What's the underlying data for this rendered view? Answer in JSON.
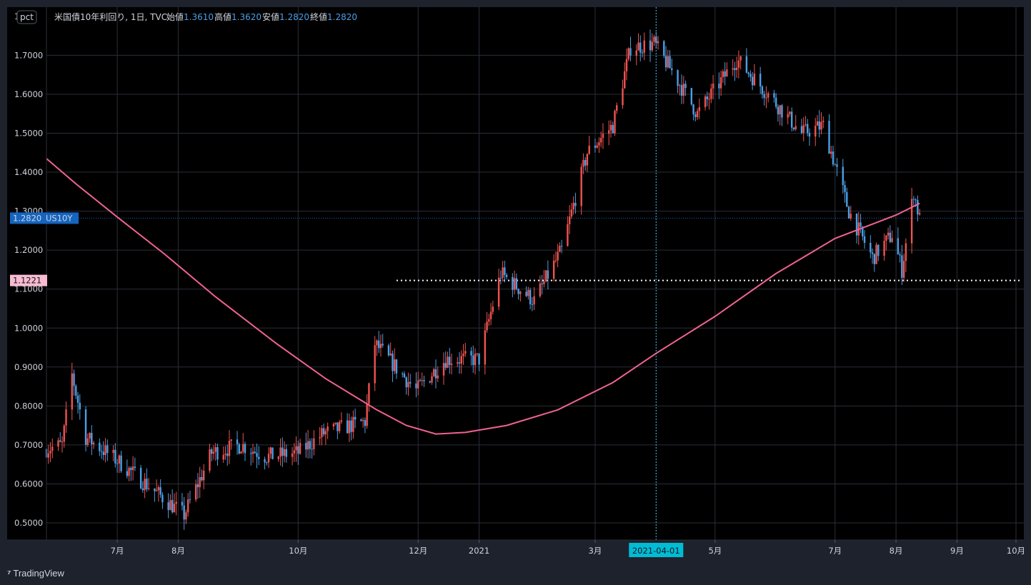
{
  "header": {
    "unit_badge": "pct",
    "symbol_desc": "米国債10年利回り, 1日, TVC",
    "open_label": "始値",
    "open": "1.3610",
    "high_label": "高値",
    "high": "1.3620",
    "low_label": "安値",
    "low": "1.2820",
    "close_label": "終値",
    "close": "1.2820"
  },
  "footer": {
    "brand": "TradingView"
  },
  "colors": {
    "background": "#000000",
    "panel": "#1e222d",
    "grid": "#2a2e39",
    "up": "#ef5350",
    "down": "#4c9fe6",
    "ma_line": "#f06292",
    "crosshair_label": "#00bcd4",
    "price_label": "#1565c0",
    "level_label": "#f8bbd0"
  },
  "chart_data": {
    "type": "candlestick",
    "y_ticks": [
      "0.5000",
      "0.6000",
      "0.7000",
      "0.8000",
      "0.9000",
      "1.0000",
      "1.1000",
      "1.2000",
      "1.3000",
      "1.4000",
      "1.5000",
      "1.6000",
      "1.7000"
    ],
    "y_top_partial": "1",
    "ylim": [
      0.45,
      1.8
    ],
    "x_ticks": [
      {
        "label": "7月",
        "date": "2020-07-01"
      },
      {
        "label": "8月",
        "date": "2020-08-01"
      },
      {
        "label": "10月",
        "date": "2020-10-01"
      },
      {
        "label": "12月",
        "date": "2020-12-01"
      },
      {
        "label": "2021",
        "date": "2021-01-01"
      },
      {
        "label": "3月",
        "date": "2021-03-01"
      },
      {
        "label": "5月",
        "date": "2021-05-01"
      },
      {
        "label": "7月",
        "date": "2021-07-01"
      },
      {
        "label": "8月",
        "date": "2021-08-01"
      },
      {
        "label": "9月",
        "date": "2021-09-01"
      },
      {
        "label": "10月",
        "date": "2021-10-01"
      }
    ],
    "x_range": [
      "2020-05-26",
      "2021-10-05"
    ],
    "crosshair_date": "2021-04-01",
    "last_price": {
      "value": 1.282,
      "label": "1.2820",
      "symbol": "US10Y"
    },
    "horizontal_level": {
      "value": 1.1221,
      "label": "1.1221",
      "start_date": "2020-11-20"
    },
    "key_points": [
      {
        "date": "2020-05-26",
        "value": 0.69
      },
      {
        "date": "2020-06-03",
        "value": 0.7
      },
      {
        "date": "2020-06-08",
        "value": 0.88
      },
      {
        "date": "2020-06-15",
        "value": 0.72
      },
      {
        "date": "2020-07-01",
        "value": 0.66
      },
      {
        "date": "2020-08-04",
        "value": 0.52
      },
      {
        "date": "2020-08-18",
        "value": 0.68
      },
      {
        "date": "2020-09-02",
        "value": 0.7
      },
      {
        "date": "2020-09-15",
        "value": 0.67
      },
      {
        "date": "2020-10-01",
        "value": 0.68
      },
      {
        "date": "2020-10-14",
        "value": 0.73
      },
      {
        "date": "2020-11-04",
        "value": 0.76
      },
      {
        "date": "2020-11-09",
        "value": 0.96
      },
      {
        "date": "2020-11-30",
        "value": 0.84
      },
      {
        "date": "2020-12-15",
        "value": 0.92
      },
      {
        "date": "2021-01-01",
        "value": 0.92
      },
      {
        "date": "2021-01-12",
        "value": 1.14
      },
      {
        "date": "2021-01-29",
        "value": 1.07
      },
      {
        "date": "2021-02-12",
        "value": 1.2
      },
      {
        "date": "2021-02-25",
        "value": 1.45
      },
      {
        "date": "2021-03-10",
        "value": 1.52
      },
      {
        "date": "2021-03-19",
        "value": 1.72
      },
      {
        "date": "2021-03-31",
        "value": 1.73
      },
      {
        "date": "2021-04-09",
        "value": 1.66
      },
      {
        "date": "2021-04-22",
        "value": 1.55
      },
      {
        "date": "2021-05-12",
        "value": 1.69
      },
      {
        "date": "2021-05-28",
        "value": 1.6
      },
      {
        "date": "2021-06-14",
        "value": 1.5
      },
      {
        "date": "2021-06-25",
        "value": 1.52
      },
      {
        "date": "2021-07-08",
        "value": 1.3
      },
      {
        "date": "2021-07-20",
        "value": 1.18
      },
      {
        "date": "2021-07-30",
        "value": 1.24
      },
      {
        "date": "2021-08-04",
        "value": 1.15
      },
      {
        "date": "2021-08-10",
        "value": 1.35
      },
      {
        "date": "2021-08-13",
        "value": 1.28
      }
    ],
    "moving_average": [
      {
        "date": "2020-05-26",
        "value": 1.435
      },
      {
        "date": "2020-06-10",
        "value": 1.37
      },
      {
        "date": "2020-07-01",
        "value": 1.285
      },
      {
        "date": "2020-07-25",
        "value": 1.19
      },
      {
        "date": "2020-08-20",
        "value": 1.08
      },
      {
        "date": "2020-09-20",
        "value": 0.96
      },
      {
        "date": "2020-10-15",
        "value": 0.87
      },
      {
        "date": "2020-11-10",
        "value": 0.79
      },
      {
        "date": "2020-11-25",
        "value": 0.75
      },
      {
        "date": "2020-12-10",
        "value": 0.728
      },
      {
        "date": "2020-12-25",
        "value": 0.732
      },
      {
        "date": "2021-01-15",
        "value": 0.75
      },
      {
        "date": "2021-02-10",
        "value": 0.79
      },
      {
        "date": "2021-03-10",
        "value": 0.86
      },
      {
        "date": "2021-04-01",
        "value": 0.935
      },
      {
        "date": "2021-05-01",
        "value": 1.03
      },
      {
        "date": "2021-06-01",
        "value": 1.14
      },
      {
        "date": "2021-07-01",
        "value": 1.23
      },
      {
        "date": "2021-08-01",
        "value": 1.29
      },
      {
        "date": "2021-08-13",
        "value": 1.32
      }
    ]
  }
}
